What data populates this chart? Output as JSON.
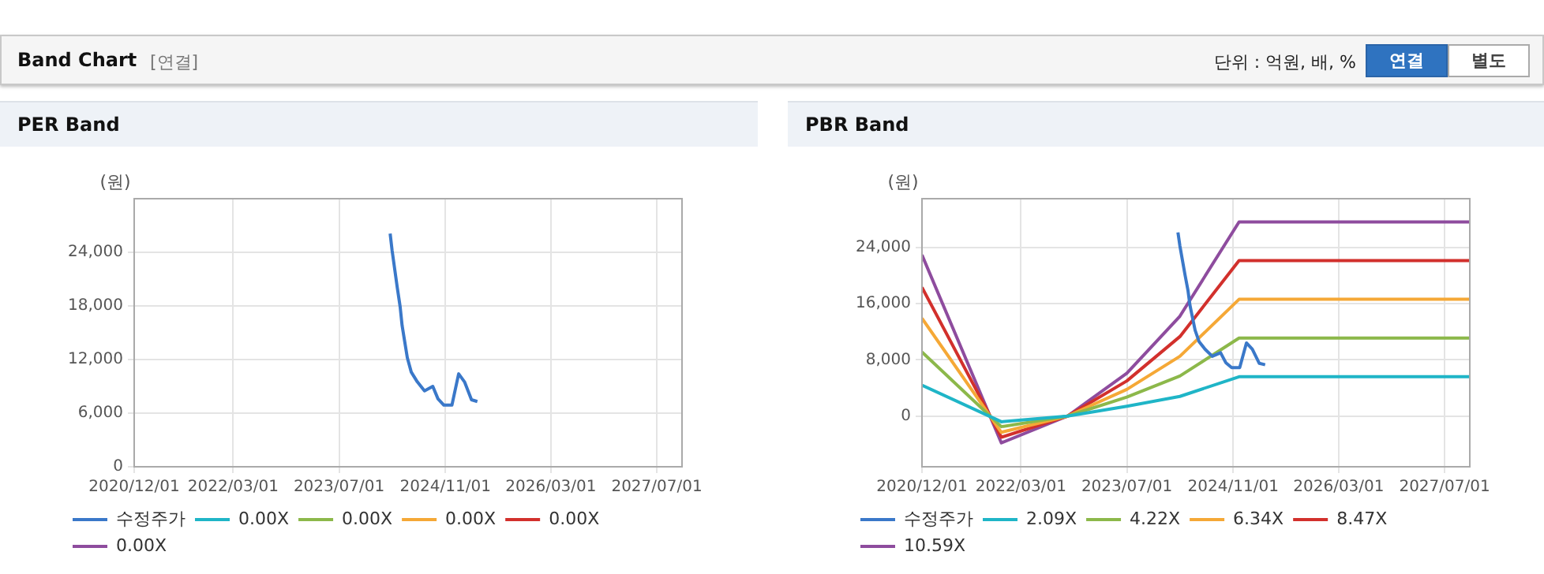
{
  "chart_data": [
    {
      "type": "other",
      "title": "Band Chart",
      "subtitle": "[연결]",
      "annotations": [
        "단위 : 억원, 배, %",
        "연결",
        "별도"
      ]
    },
    {
      "type": "line",
      "title": "PER Band",
      "ylabel": "(원)",
      "xlim": [
        "2020-12-01",
        "2027-10-25"
      ],
      "ylim": [
        0,
        30000
      ],
      "xticks": [
        {
          "value": "2020-12-01",
          "label": "2020/12/01"
        },
        {
          "value": "2022-03-01",
          "label": "2022/03/01"
        },
        {
          "value": "2023-07-01",
          "label": "2023/07/01"
        },
        {
          "value": "2024-11-01",
          "label": "2024/11/01"
        },
        {
          "value": "2026-03-01",
          "label": "2026/03/01"
        },
        {
          "value": "2027-07-01",
          "label": "2027/07/01"
        }
      ],
      "yticks": [
        0,
        {
          "value": 6000,
          "label": "6,000"
        },
        {
          "value": 12000,
          "label": "12,000"
        },
        {
          "value": 18000,
          "label": "18,000"
        },
        {
          "value": 24000,
          "label": "24,000"
        }
      ],
      "grid": true,
      "legend": "bottom",
      "marker": "none",
      "series": [
        {
          "name": "수정주가",
          "color": "#3a78c9",
          "x": [
            "2024-02-21",
            "2024-03-01",
            "2024-03-13",
            "2024-03-25",
            "2024-04-07",
            "2024-04-16",
            "2024-04-28",
            "2024-05-10",
            "2024-05-28",
            "2024-06-25",
            "2024-07-28",
            "2024-09-04",
            "2024-09-28",
            "2024-10-25",
            "2024-12-01",
            "2025-01-01",
            "2025-01-28",
            "2025-03-01",
            "2025-03-28"
          ],
          "values": [
            26100,
            24200,
            22100,
            20000,
            17900,
            15800,
            14000,
            12200,
            10600,
            9500,
            8500,
            9000,
            7600,
            6900,
            6900,
            10400,
            9500,
            7500,
            7300
          ]
        },
        {
          "name": "0.00X",
          "color": "#1fb5c7"
        },
        {
          "name": "0.00X",
          "color": "#8cb84a"
        },
        {
          "name": "0.00X",
          "color": "#f5a836"
        },
        {
          "name": "0.00X",
          "color": "#d2302c"
        },
        {
          "name": "0.00X",
          "color": "#8e4c9e"
        }
      ]
    },
    {
      "type": "line",
      "title": "PBR Band",
      "ylabel": "(원)",
      "xlim": [
        "2020-12-01",
        "2027-10-25"
      ],
      "ylim": [
        -7200,
        30900
      ],
      "xticks": [
        {
          "value": "2020-12-01",
          "label": "2020/12/01"
        },
        {
          "value": "2022-03-01",
          "label": "2022/03/01"
        },
        {
          "value": "2023-07-01",
          "label": "2023/07/01"
        },
        {
          "value": "2024-11-01",
          "label": "2024/11/01"
        },
        {
          "value": "2026-03-01",
          "label": "2026/03/01"
        },
        {
          "value": "2027-07-01",
          "label": "2027/07/01"
        }
      ],
      "yticks": [
        0,
        {
          "value": 8000,
          "label": "8,000"
        },
        {
          "value": 16000,
          "label": "16,000"
        },
        {
          "value": 24000,
          "label": "24,000"
        }
      ],
      "grid": true,
      "legend": "bottom",
      "marker": "none",
      "series": [
        {
          "name": "수정주가",
          "color": "#3a78c9",
          "x": [
            "2024-02-21",
            "2024-03-01",
            "2024-03-13",
            "2024-03-25",
            "2024-04-07",
            "2024-04-16",
            "2024-04-28",
            "2024-05-10",
            "2024-05-28",
            "2024-06-25",
            "2024-07-28",
            "2024-09-04",
            "2024-09-28",
            "2024-10-25",
            "2024-12-01",
            "2025-01-01",
            "2025-01-28",
            "2025-03-01",
            "2025-03-28"
          ],
          "values": [
            26100,
            24200,
            22100,
            20000,
            17900,
            15800,
            14000,
            12200,
            10600,
            9500,
            8500,
            9000,
            7600,
            6900,
            6900,
            10400,
            9500,
            7500,
            7300
          ]
        },
        {
          "name": "2.09X",
          "color": "#1fb5c7",
          "x": [
            "2020-12-01",
            "2021-12-01",
            "2022-10-01",
            "2023-07-01",
            "2024-03-01",
            "2024-11-28",
            "2027-10-25"
          ],
          "values": [
            4400,
            -800,
            0,
            1400,
            2800,
            5600,
            5600
          ]
        },
        {
          "name": "4.22X",
          "color": "#8cb84a",
          "x": [
            "2020-12-01",
            "2021-12-01",
            "2022-10-01",
            "2023-07-01",
            "2024-03-01",
            "2024-11-28",
            "2027-10-25"
          ],
          "values": [
            9100,
            -1500,
            0,
            2700,
            5700,
            11100,
            11100
          ]
        },
        {
          "name": "6.34X",
          "color": "#f5a836",
          "x": [
            "2020-12-01",
            "2021-12-01",
            "2022-10-01",
            "2023-07-01",
            "2024-03-01",
            "2024-11-28",
            "2027-10-25"
          ],
          "values": [
            13900,
            -2300,
            0,
            3800,
            8500,
            16600,
            16600
          ]
        },
        {
          "name": "8.47X",
          "color": "#d2302c",
          "x": [
            "2020-12-01",
            "2021-12-01",
            "2022-10-01",
            "2023-07-01",
            "2024-03-01",
            "2024-11-28",
            "2027-10-25"
          ],
          "values": [
            18300,
            -3000,
            0,
            5000,
            11300,
            22100,
            22100
          ]
        },
        {
          "name": "10.59X",
          "color": "#8e4c9e",
          "x": [
            "2020-12-01",
            "2021-12-01",
            "2022-10-01",
            "2023-07-01",
            "2024-03-01",
            "2024-11-28",
            "2027-10-25"
          ],
          "values": [
            22900,
            -3800,
            0,
            6100,
            14200,
            27600,
            27600
          ]
        }
      ]
    }
  ]
}
